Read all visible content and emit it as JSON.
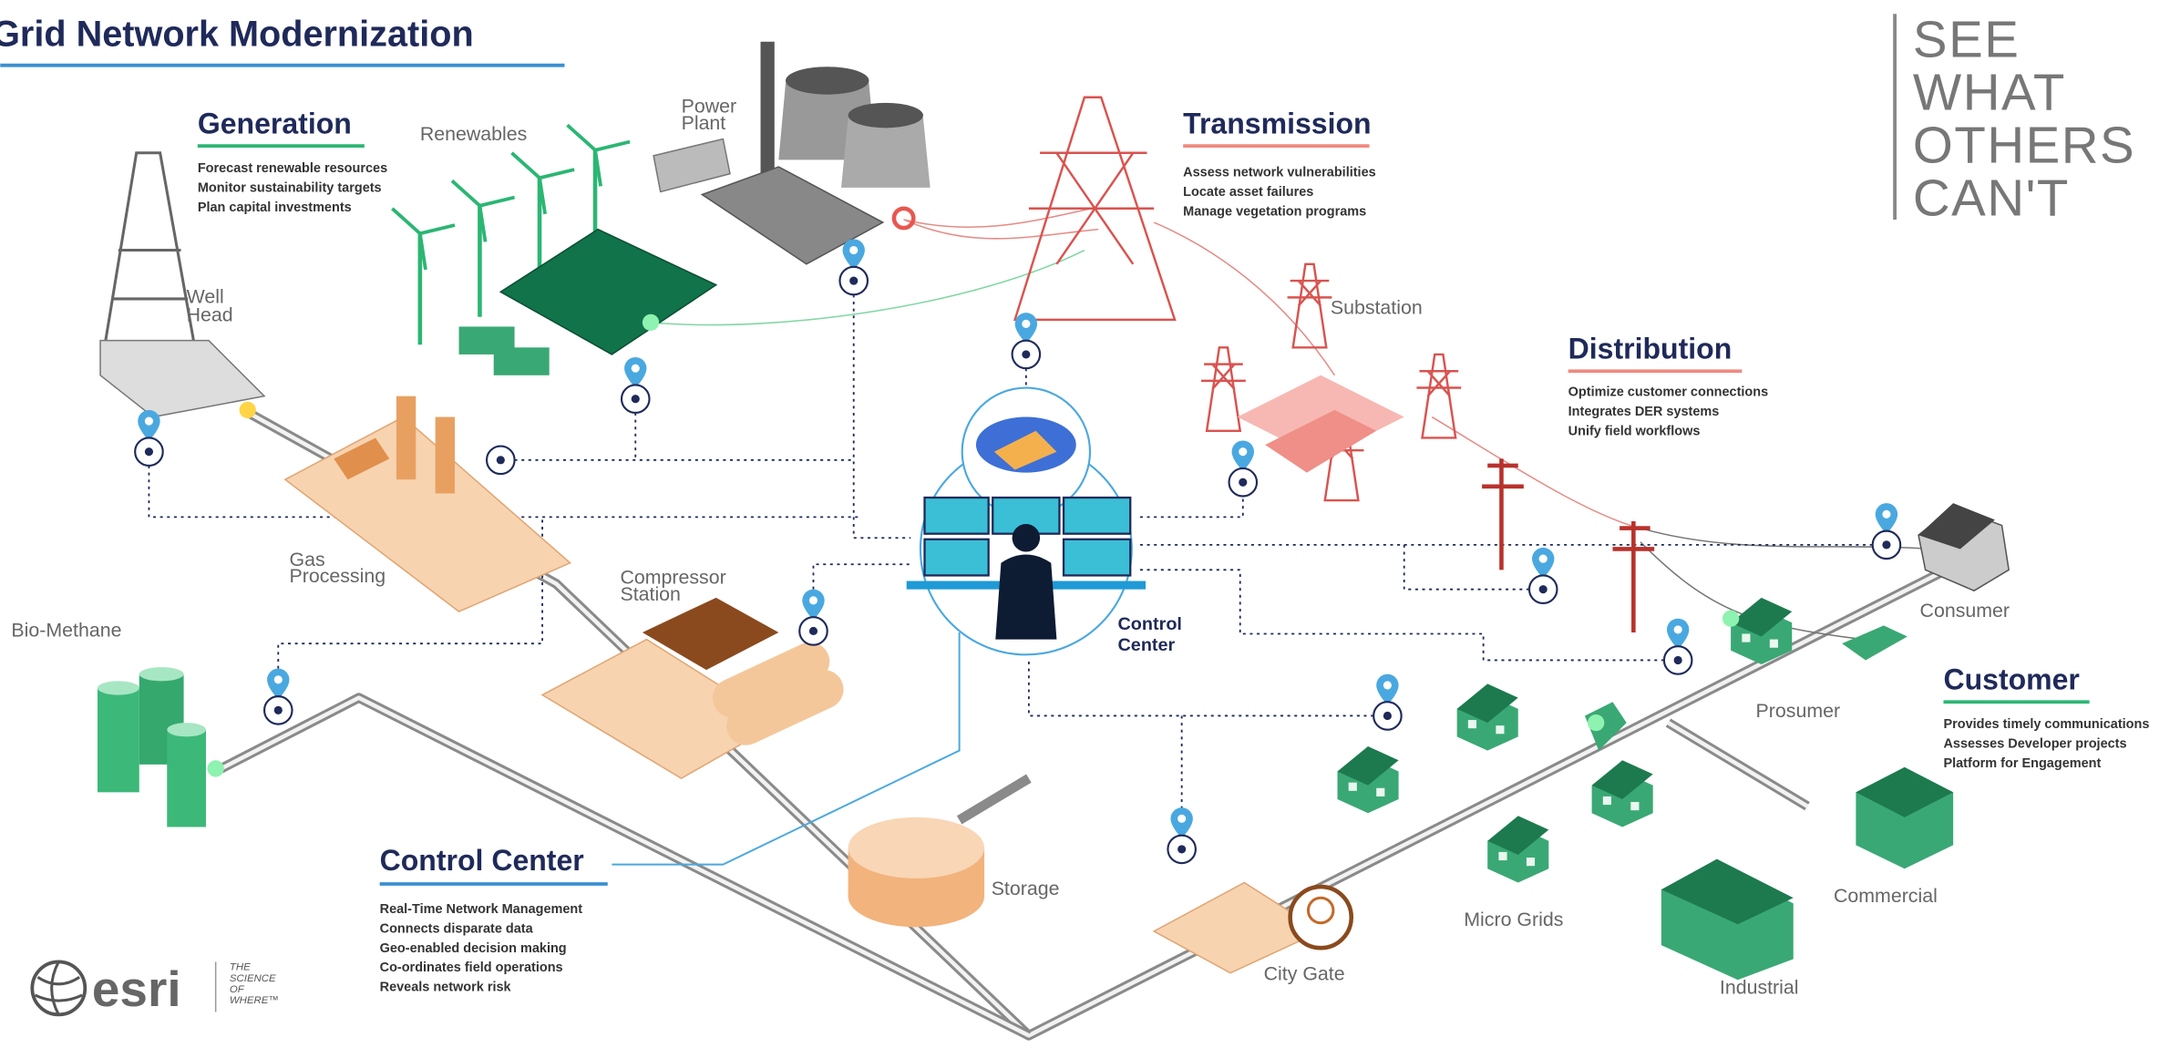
{
  "header": {
    "title": "Grid Network Modernization"
  },
  "tagline": [
    "SEE",
    "WHAT",
    "OTHERS",
    "CAN'T"
  ],
  "sections": {
    "generation": {
      "heading": "Generation",
      "items": [
        "Forecast renewable resources",
        "Monitor sustainability targets",
        "Plan capital investments"
      ]
    },
    "transmission": {
      "heading": "Transmission",
      "items": [
        "Assess network vulnerabilities",
        "Locate asset failures",
        "Manage vegetation programs"
      ]
    },
    "distribution": {
      "heading": "Distribution",
      "items": [
        "Optimize customer connections",
        "Integrates DER systems",
        "Unify field workflows"
      ]
    },
    "customer": {
      "heading": "Customer",
      "items": [
        "Provides timely communications",
        "Assesses Developer projects",
        "Platform for Engagement"
      ]
    },
    "control_center": {
      "heading": "Control Center",
      "items": [
        "Real-Time Network Management",
        "Connects disparate data",
        "Geo-enabled decision making",
        "Co-ordinates field operations",
        "Reveals network risk"
      ]
    }
  },
  "nodes": {
    "renewables": {
      "lines": [
        "Renewables"
      ]
    },
    "power_plant": {
      "lines": [
        "Power",
        "Plant"
      ]
    },
    "well_head": {
      "lines": [
        "Well",
        "Head"
      ]
    },
    "substation": {
      "lines": [
        "Substation"
      ]
    },
    "gas_processing": {
      "lines": [
        "Gas",
        "Processing"
      ]
    },
    "compressor_station": {
      "lines": [
        "Compressor",
        "Station"
      ]
    },
    "bio_methane": {
      "lines": [
        "Bio-Methane"
      ]
    },
    "control_center": {
      "lines": [
        "Control",
        "Center"
      ]
    },
    "consumer": {
      "lines": [
        "Consumer"
      ]
    },
    "prosumer": {
      "lines": [
        "Prosumer"
      ]
    },
    "storage": {
      "lines": [
        "Storage"
      ]
    },
    "city_gate": {
      "lines": [
        "City Gate"
      ]
    },
    "micro_grids": {
      "lines": [
        "Micro Grids"
      ]
    },
    "commercial": {
      "lines": [
        "Commercial"
      ]
    },
    "industrial": {
      "lines": [
        "Industrial"
      ]
    }
  },
  "logo": {
    "name": "esri",
    "slogan": [
      "THE",
      "SCIENCE",
      "OF",
      "WHERE™"
    ]
  }
}
